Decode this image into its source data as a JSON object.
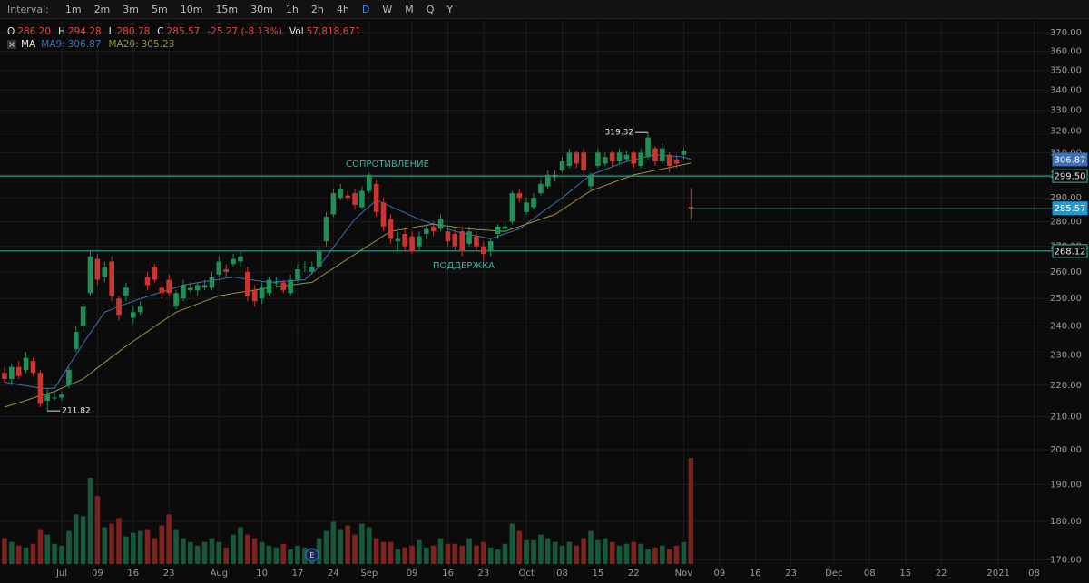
{
  "interval_bar": {
    "label": "Interval:",
    "options": [
      "1m",
      "2m",
      "3m",
      "5m",
      "10m",
      "15m",
      "30m",
      "1h",
      "2h",
      "4h",
      "D",
      "W",
      "M",
      "Q",
      "Y"
    ],
    "selected": "D"
  },
  "chart_data": {
    "type": "candlestick",
    "ohlc_legend": [
      {
        "label": "O",
        "value": "286.20"
      },
      {
        "label": "H",
        "value": "294.28"
      },
      {
        "label": "L",
        "value": "280.78"
      },
      {
        "label": "C",
        "value": "285.57"
      }
    ],
    "change": "-25.27 (-8.13%)",
    "volume_label": "Vol",
    "volume_text": "57,818,671",
    "ma_label": "MA",
    "up_color": "#1f8f57",
    "down_color": "#c9362f",
    "volume_up_color": "#17583b",
    "volume_down_color": "#7c221f",
    "y_scale": "log",
    "grid": true,
    "ylim": [
      169,
      374.5
    ],
    "yticks": [
      {
        "value": 170,
        "label": "170.00"
      },
      {
        "value": 180,
        "label": "180.00"
      },
      {
        "value": 190,
        "label": "190.00"
      },
      {
        "value": 200,
        "label": "200.00"
      },
      {
        "value": 210,
        "label": "210.00"
      },
      {
        "value": 220,
        "label": "220.00"
      },
      {
        "value": 230,
        "label": "230.00"
      },
      {
        "value": 240,
        "label": "240.00"
      },
      {
        "value": 250,
        "label": "250.00"
      },
      {
        "value": 260,
        "label": "260.00"
      },
      {
        "value": 270,
        "label": "270.00"
      },
      {
        "value": 280,
        "label": "280.00"
      },
      {
        "value": 290,
        "label": "290.00"
      },
      {
        "value": 300,
        "label": "300.00"
      },
      {
        "value": 310,
        "label": "310.00"
      },
      {
        "value": 320,
        "label": "320.00"
      },
      {
        "value": 330,
        "label": "330.00"
      },
      {
        "value": 340,
        "label": "340.00"
      },
      {
        "value": 350,
        "label": "350.00"
      },
      {
        "value": 360,
        "label": "360.00"
      },
      {
        "value": 370,
        "label": "370.00"
      }
    ],
    "xlim": [
      -0.63,
      146.6
    ],
    "xticks": [
      {
        "value": 8,
        "label": "Jul"
      },
      {
        "value": 13,
        "label": "09"
      },
      {
        "value": 18,
        "label": "16"
      },
      {
        "value": 23,
        "label": "23"
      },
      {
        "value": 30,
        "label": "Aug"
      },
      {
        "value": 36,
        "label": "10"
      },
      {
        "value": 41,
        "label": "17"
      },
      {
        "value": 46,
        "label": "24"
      },
      {
        "value": 51,
        "label": "Sep"
      },
      {
        "value": 57,
        "label": "09"
      },
      {
        "value": 62,
        "label": "16"
      },
      {
        "value": 67,
        "label": "23"
      },
      {
        "value": 73,
        "label": "Oct"
      },
      {
        "value": 78,
        "label": "08"
      },
      {
        "value": 83,
        "label": "15"
      },
      {
        "value": 88,
        "label": "22"
      },
      {
        "value": 95,
        "label": "Nov"
      },
      {
        "value": 100,
        "label": "09"
      },
      {
        "value": 105,
        "label": "16"
      },
      {
        "value": 110,
        "label": "23"
      },
      {
        "value": 116,
        "label": "Dec"
      },
      {
        "value": 121,
        "label": "08"
      },
      {
        "value": 126,
        "label": "15"
      },
      {
        "value": 131,
        "label": "22"
      },
      {
        "value": 139,
        "label": "2021"
      },
      {
        "value": 144,
        "label": "08"
      }
    ],
    "open": [
      224,
      222,
      226,
      225,
      228,
      224,
      215,
      216,
      216,
      220,
      232,
      240,
      252,
      265,
      258,
      264,
      250,
      251,
      243,
      245,
      258,
      262,
      254,
      257,
      247,
      250,
      253,
      253,
      254,
      254,
      259,
      261,
      263,
      264,
      260,
      253,
      250,
      252,
      256,
      256,
      252,
      257,
      262,
      260,
      262,
      272,
      283,
      290,
      291,
      292,
      286,
      293,
      296,
      288,
      281,
      272,
      275,
      274,
      270,
      275,
      278,
      277,
      276,
      275,
      276,
      271,
      274,
      270,
      268,
      275,
      277,
      280,
      292,
      284,
      286,
      292,
      295,
      299,
      302,
      304,
      310,
      310,
      295,
      304,
      305,
      310,
      306,
      307,
      310,
      304,
      308,
      312,
      306,
      309,
      307,
      309,
      286.2
    ],
    "high": [
      226,
      227,
      228,
      231,
      229,
      225,
      219,
      218,
      218,
      226,
      240,
      248,
      268,
      267,
      264,
      266,
      251,
      256,
      247,
      249,
      260,
      263,
      256,
      259,
      253,
      257,
      256,
      256,
      257,
      260,
      266,
      263,
      267,
      268,
      262,
      255,
      256,
      258,
      258,
      257,
      259,
      263,
      264,
      264,
      270,
      284,
      294,
      296,
      293,
      294,
      295,
      301,
      298,
      290,
      283,
      276,
      277,
      276,
      276,
      279,
      280,
      283,
      278,
      277,
      278,
      278,
      276,
      272,
      273,
      279,
      280,
      293,
      294,
      290,
      292,
      298,
      302,
      302,
      308,
      312,
      311,
      312,
      301,
      312,
      310,
      311,
      312,
      311,
      311,
      312,
      319.32,
      313,
      314,
      310,
      309,
      312,
      294.28
    ],
    "low": [
      221,
      220,
      222,
      224,
      223,
      213,
      211.82,
      215,
      215,
      219,
      231,
      238,
      251,
      255,
      256,
      249,
      242,
      249,
      241,
      244,
      253,
      256,
      250,
      251,
      246,
      249,
      252,
      251,
      253,
      253,
      258,
      258,
      262,
      262,
      249,
      247,
      248,
      251,
      254,
      252,
      251,
      256,
      260,
      259,
      261,
      270,
      282,
      289,
      288,
      285,
      285,
      292,
      282,
      276,
      271,
      268,
      268,
      267,
      268,
      273,
      274,
      276,
      270,
      268,
      266,
      270,
      268,
      264,
      266,
      273,
      276,
      279,
      288,
      283,
      285,
      291,
      294,
      297,
      301,
      303,
      303,
      300,
      293,
      303,
      304,
      304,
      305,
      306,
      303,
      303,
      307,
      304,
      305,
      301,
      303,
      307,
      280.78
    ],
    "close": [
      222,
      226,
      223,
      229,
      224,
      214,
      217,
      216,
      217,
      225,
      238,
      247,
      266,
      257,
      262,
      251,
      244,
      254,
      245,
      247,
      255,
      257,
      252,
      252,
      252,
      255,
      254,
      255,
      255,
      258,
      264,
      260,
      265,
      266,
      251,
      249,
      254,
      257,
      256,
      253,
      257,
      261,
      262,
      262,
      268,
      282,
      292,
      294,
      290,
      287,
      293,
      300,
      284,
      278,
      273,
      273,
      270,
      268,
      274,
      277,
      276,
      281,
      272,
      270,
      268,
      276,
      270,
      267,
      272,
      278,
      278,
      292,
      290,
      288,
      290,
      296,
      300,
      300,
      306,
      310,
      305,
      302,
      300,
      310,
      308,
      306,
      310,
      309,
      305,
      310,
      317,
      306,
      312,
      304,
      305,
      310.84,
      285.57
    ],
    "volume": [
      14000000,
      12000000,
      10000000,
      9000000,
      11000000,
      19000000,
      16000000,
      11000000,
      10000000,
      18000000,
      27000000,
      26000000,
      47000000,
      37000000,
      20000000,
      22000000,
      25000000,
      15000000,
      17000000,
      18000000,
      19000000,
      14000000,
      21000000,
      27000000,
      19000000,
      14000000,
      12000000,
      10000000,
      12000000,
      14000000,
      12000000,
      9000000,
      16000000,
      20000000,
      16000000,
      14000000,
      12000000,
      10000000,
      9000000,
      11000000,
      8000000,
      10000000,
      9000000,
      6000000,
      14000000,
      18000000,
      23000000,
      19000000,
      21000000,
      16000000,
      22000000,
      20000000,
      14000000,
      12000000,
      12000000,
      8000000,
      9000000,
      10000000,
      13000000,
      9000000,
      10000000,
      14000000,
      11000000,
      11000000,
      10000000,
      14000000,
      10000000,
      12000000,
      9000000,
      8000000,
      11000000,
      22000000,
      18000000,
      13000000,
      13000000,
      16000000,
      14000000,
      12000000,
      10000000,
      12000000,
      10000000,
      14000000,
      18000000,
      13000000,
      14000000,
      12000000,
      10000000,
      11000000,
      12000000,
      11000000,
      8000000,
      9000000,
      10000000,
      8000000,
      10000000,
      12000000,
      57818671
    ],
    "ma": [
      {
        "name": "MA9:",
        "color": "#3f6fb5",
        "values": [
          221,
          220.6,
          220.2,
          219.8,
          219.4,
          219,
          219,
          219,
          222.7,
          226.4,
          230.1,
          233.9,
          237.6,
          241.3,
          245,
          246,
          247,
          248,
          249,
          249.9,
          250.7,
          251.6,
          252.4,
          253.3,
          254.1,
          255,
          255.4,
          255.9,
          256.3,
          256.7,
          257.1,
          257.6,
          258,
          257.6,
          257.2,
          256.8,
          256.4,
          256,
          256.2,
          256.4,
          256.6,
          256.8,
          257,
          259.5,
          262,
          265.8,
          269.6,
          273.4,
          277.2,
          281,
          283.7,
          286.3,
          289,
          287.7,
          286.3,
          285,
          283.7,
          282.3,
          281,
          280,
          279,
          278,
          277,
          276,
          275.4,
          274.8,
          274.2,
          273.6,
          273,
          274,
          275,
          276,
          277,
          279.2,
          281.3,
          283.5,
          285.7,
          287.8,
          290,
          292.5,
          295,
          297.5,
          300,
          301.2,
          302.4,
          303.6,
          304.8,
          306,
          306.8,
          307.5,
          308.3,
          309,
          308.8,
          308.5,
          308.3,
          308,
          306.87
        ]
      },
      {
        "name": "MA20:",
        "color": "#9b8f3e",
        "values": [
          213,
          213.7,
          214.4,
          215.1,
          215.9,
          216.6,
          217.3,
          218,
          219,
          220,
          221,
          222,
          223.8,
          225.7,
          227.5,
          229.3,
          231.2,
          233,
          234.7,
          236.4,
          238.1,
          239.9,
          241.6,
          243.3,
          245,
          246,
          247,
          248,
          249,
          250,
          251,
          251.4,
          251.9,
          252.3,
          252.7,
          253.1,
          253.6,
          254,
          254.3,
          254.7,
          255,
          255.3,
          255.7,
          256,
          257.8,
          259.6,
          261.4,
          263.2,
          265,
          266.8,
          268.7,
          270.5,
          272.3,
          274.2,
          276,
          276.5,
          277,
          277.5,
          278,
          278.5,
          279,
          278.6,
          278.2,
          277.8,
          277.4,
          277,
          276.8,
          276.6,
          276.4,
          276.2,
          276,
          277,
          278,
          279,
          280,
          281,
          282,
          283,
          285,
          287,
          289,
          291,
          293,
          294.2,
          295.3,
          296.5,
          297.7,
          298.8,
          300,
          300.7,
          301.3,
          302,
          302.6,
          303.3,
          303.9,
          304.6,
          305.23
        ]
      }
    ],
    "price_lines": [
      {
        "value": 299.5,
        "label": "299.50",
        "text": "СОПРОТИВЛЕНИЕ",
        "color": "#2fb8a3"
      },
      {
        "value": 268.12,
        "label": "268.12",
        "text": "ПОДДЕРЖКА",
        "color": "#2fb8a3"
      }
    ],
    "last_price_color": "#1e9bd7",
    "events": [
      {
        "index": 43,
        "label": "E"
      }
    ]
  }
}
